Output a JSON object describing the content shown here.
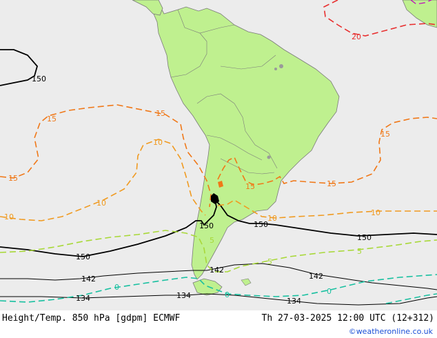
{
  "colors": {
    "ocean": "#ececec",
    "land": "#bff08f",
    "border": "#7a7a7a",
    "lake": "#9a9a9a",
    "isohypse": "#000000",
    "isotherm_20": "#e83030",
    "isotherm_15": "#f07818",
    "isotherm_10": "#f09a20",
    "isotherm_5": "#a8d838",
    "isotherm_0": "#18c0a0",
    "extreme_warm": "#c000c0",
    "credit_link": "#1a4fd6"
  },
  "contour_labels": {
    "h150_nw": "150",
    "h150_a": "150",
    "h150_b": "150",
    "h150_c": "150",
    "h150_d": "150",
    "h142_a": "142",
    "h142_b": "142",
    "h142_c": "142",
    "h134_a": "134",
    "h134_b": "134",
    "h134_c": "134",
    "t20": "20",
    "t15_a": "15",
    "t15_b": "15",
    "t15_c": "15",
    "t15_d": "15",
    "t15_e": "15",
    "t15_f": "15",
    "t10_a": "10",
    "t10_b": "10",
    "t10_c": "10",
    "t10_d": "10",
    "t10_e": "10",
    "t5_a": "5",
    "t5_b": "5",
    "t5_c": "5",
    "t0_a": "0",
    "t0_b": "0",
    "t0_c": "0"
  },
  "footer": {
    "title": "Height/Temp. 850 hPa [gdpm] ECMWF",
    "valid_time": "Th 27-03-2025 12:00 UTC (12+312)",
    "credit": "©weatheronline.co.uk"
  }
}
